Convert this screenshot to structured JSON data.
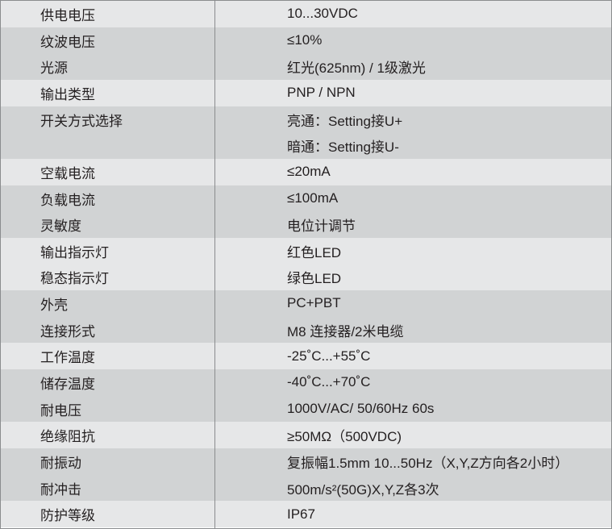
{
  "colors": {
    "light_row": "#e6e7e8",
    "dark_row": "#d1d3d4",
    "border": "#8a8c8e",
    "text": "#231f20"
  },
  "groups": [
    {
      "shade": "light",
      "lines": [
        {
          "label": "供电电压",
          "value": "10...30VDC"
        }
      ]
    },
    {
      "shade": "dark",
      "lines": [
        {
          "label": "纹波电压",
          "value": "≤10%"
        },
        {
          "label": "光源",
          "value": "红光(625nm) / 1级激光"
        }
      ]
    },
    {
      "shade": "light",
      "lines": [
        {
          "label": "输出类型",
          "value": "PNP / NPN"
        }
      ]
    },
    {
      "shade": "dark",
      "lines": [
        {
          "label": "开关方式选择",
          "value": "亮通：Setting接U+"
        },
        {
          "label": "",
          "value": "暗通：Setting接U-"
        }
      ]
    },
    {
      "shade": "light",
      "lines": [
        {
          "label": "空载电流",
          "value": "≤20mA"
        }
      ]
    },
    {
      "shade": "dark",
      "lines": [
        {
          "label": "负载电流",
          "value": "≤100mA"
        },
        {
          "label": "灵敏度",
          "value": "电位计调节"
        }
      ]
    },
    {
      "shade": "light",
      "lines": [
        {
          "label": "输出指示灯",
          "value": "红色LED"
        },
        {
          "label": "稳态指示灯",
          "value": "绿色LED"
        }
      ]
    },
    {
      "shade": "dark",
      "lines": [
        {
          "label": "外壳",
          "value": "PC+PBT"
        },
        {
          "label": "连接形式",
          "value": "M8 连接器/2米电缆"
        }
      ]
    },
    {
      "shade": "light",
      "lines": [
        {
          "label": "工作温度",
          "value": "-25˚C...+55˚C"
        }
      ]
    },
    {
      "shade": "dark",
      "lines": [
        {
          "label": "储存温度",
          "value": "-40˚C...+70˚C"
        },
        {
          "label": "耐电压",
          "value": "1000V/AC/ 50/60Hz 60s"
        }
      ]
    },
    {
      "shade": "light",
      "lines": [
        {
          "label": "绝缘阻抗",
          "value": "≥50MΩ（500VDC)"
        }
      ]
    },
    {
      "shade": "dark",
      "lines": [
        {
          "label": "耐振动",
          "value": "复振幅1.5mm 10...50Hz（X,Y,Z方向各2小时）"
        },
        {
          "label": "耐冲击",
          "value": "500m/s²(50G)X,Y,Z各3次"
        }
      ]
    },
    {
      "shade": "light",
      "lines": [
        {
          "label": "防护等级",
          "value": "IP67"
        }
      ]
    }
  ]
}
